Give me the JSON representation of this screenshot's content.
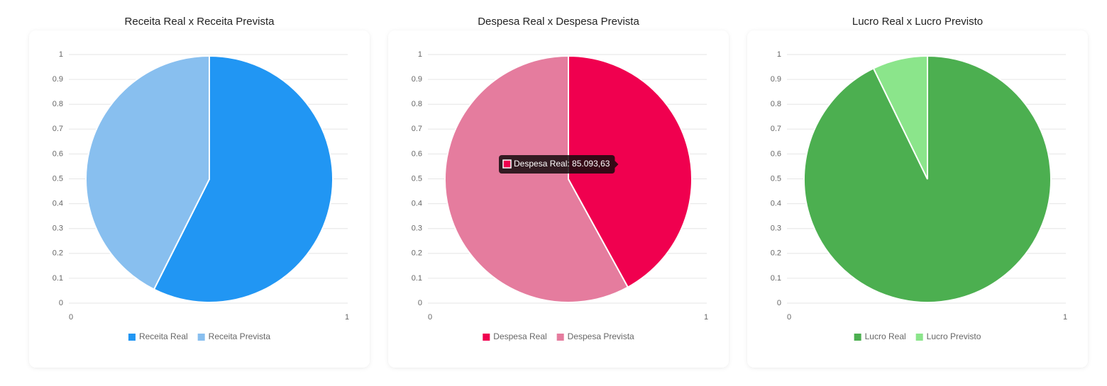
{
  "chart_data": [
    {
      "type": "pie",
      "title": "Receita Real x Receita Prevista",
      "categories": [
        "Receita Real",
        "Receita Prevista"
      ],
      "values": [
        57.4,
        42.6
      ],
      "colors": [
        "#2196f3",
        "#88bfef"
      ],
      "xlim": [
        0,
        1
      ],
      "xticks": [
        0,
        1
      ],
      "ylim": [
        0,
        1
      ],
      "yticks": [
        0,
        0.1,
        0.2,
        0.3,
        0.4,
        0.5,
        0.6,
        0.7,
        0.8,
        0.9,
        1
      ],
      "grid": true
    },
    {
      "type": "pie",
      "title": "Despesa Real x Despesa Prevista",
      "categories": [
        "Despesa Real",
        "Despesa Prevista"
      ],
      "values": [
        85093.63,
        117500
      ],
      "colors": [
        "#f0004f",
        "#e57c9e"
      ],
      "xlim": [
        0,
        1
      ],
      "xticks": [
        0,
        1
      ],
      "ylim": [
        0,
        1
      ],
      "yticks": [
        0,
        0.1,
        0.2,
        0.3,
        0.4,
        0.5,
        0.6,
        0.7,
        0.8,
        0.9,
        1
      ],
      "grid": true,
      "tooltip": "Despesa Real: 85.093,63"
    },
    {
      "type": "pie",
      "title": "Lucro Real x Lucro Previsto",
      "categories": [
        "Lucro Real",
        "Lucro Previsto"
      ],
      "values": [
        92.8,
        7.2
      ],
      "colors": [
        "#4caf50",
        "#8be58b"
      ],
      "xlim": [
        0,
        1
      ],
      "xticks": [
        0,
        1
      ],
      "ylim": [
        0,
        1
      ],
      "yticks": [
        0,
        0.1,
        0.2,
        0.3,
        0.4,
        0.5,
        0.6,
        0.7,
        0.8,
        0.9,
        1
      ],
      "grid": true
    }
  ]
}
